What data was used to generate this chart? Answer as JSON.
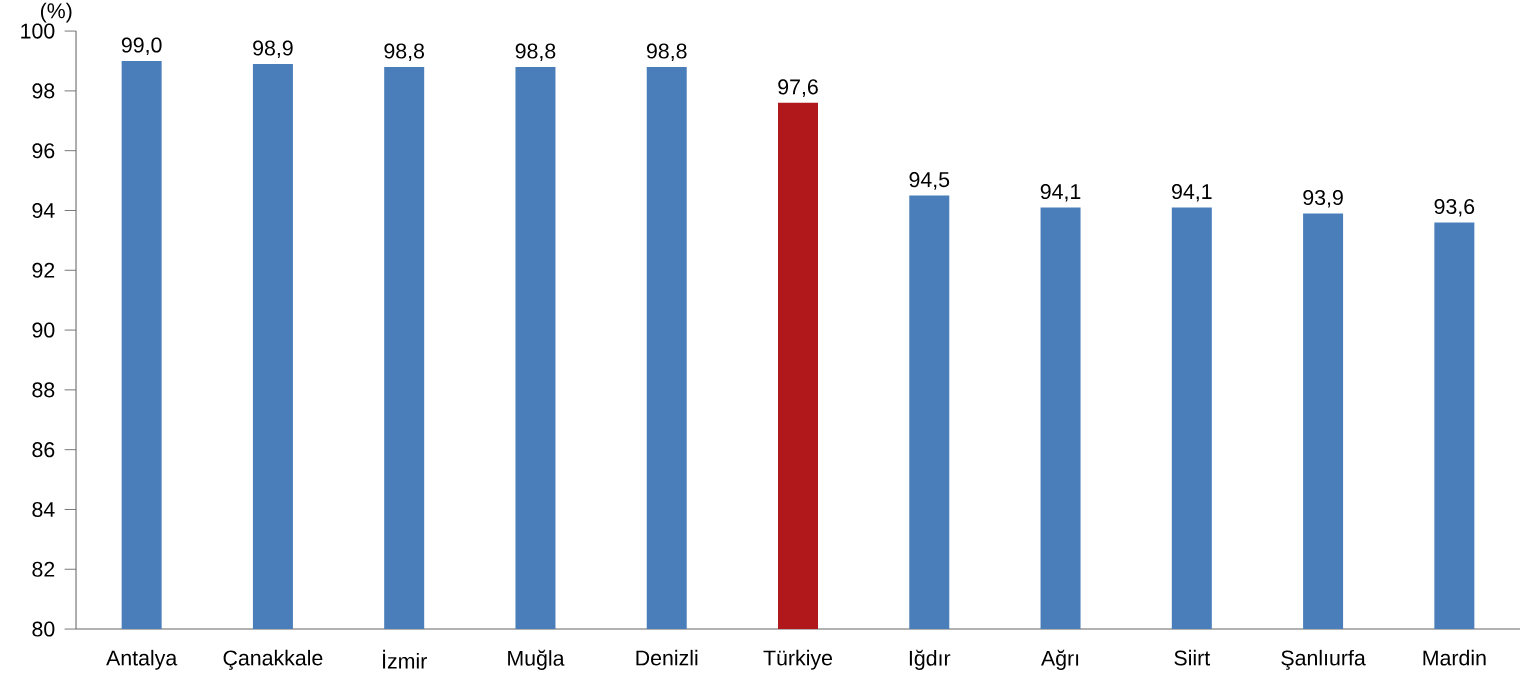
{
  "chart_data": {
    "type": "bar",
    "ylabel": "(%)",
    "categories": [
      "Antalya",
      "Çanakkale",
      "İzmir",
      "Muğla",
      "Denizli",
      "Türkiye",
      "Iğdır",
      "Ağrı",
      "Siirt",
      "Şanlıurfa",
      "Mardin"
    ],
    "values": [
      99.0,
      98.9,
      98.8,
      98.8,
      98.8,
      97.6,
      94.5,
      94.1,
      94.1,
      93.9,
      93.6
    ],
    "value_labels": [
      "99,0",
      "98,9",
      "98,8",
      "98,8",
      "98,8",
      "97,6",
      "94,5",
      "94,1",
      "94,1",
      "93,9",
      "93,6"
    ],
    "colors": [
      "#4a7ebb",
      "#4a7ebb",
      "#4a7ebb",
      "#4a7ebb",
      "#4a7ebb",
      "#b0181b",
      "#4a7ebb",
      "#4a7ebb",
      "#4a7ebb",
      "#4a7ebb",
      "#4a7ebb"
    ],
    "ylim": [
      80,
      100
    ],
    "yticks": [
      80,
      82,
      84,
      86,
      88,
      90,
      92,
      94,
      96,
      98,
      100
    ]
  }
}
